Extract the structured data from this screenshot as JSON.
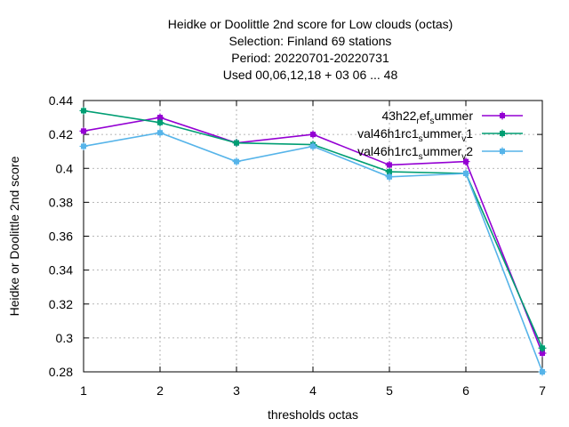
{
  "chart_data": {
    "type": "line",
    "title_lines": [
      "Heidke or Doolittle 2nd score  for Low clouds (octas)",
      "Selection: Finland     69 stations",
      "Period: 20220701-20220731",
      "Used  00,06,12,18  + 03 06 ... 48"
    ],
    "xlabel": "thresholds octas",
    "ylabel": "Heidke or Doolittle 2nd score",
    "x": [
      1,
      2,
      3,
      4,
      5,
      6,
      7
    ],
    "xlim": [
      1,
      7
    ],
    "ylim": [
      0.28,
      0.44
    ],
    "y_ticks": [
      "0.28",
      "0.3",
      "0.32",
      "0.34",
      "0.36",
      "0.38",
      "0.4",
      "0.42",
      "0.44"
    ],
    "x_ticks": [
      "1",
      "2",
      "3",
      "4",
      "5",
      "6",
      "7"
    ],
    "grid": true,
    "legend_position": "top-right",
    "series": [
      {
        "legend_parts": [
          [
            "43h22",
            "n"
          ],
          [
            "r",
            "sub"
          ],
          [
            "ef",
            "n"
          ],
          [
            "s",
            "sub"
          ],
          [
            "ummer",
            "n"
          ]
        ],
        "color": "#9400d3",
        "values": [
          0.422,
          0.43,
          0.415,
          0.42,
          0.402,
          0.404,
          0.291
        ]
      },
      {
        "legend_parts": [
          [
            "val46h1rc1",
            "n"
          ],
          [
            "s",
            "sub"
          ],
          [
            "ummer",
            "n"
          ],
          [
            "v",
            "sub"
          ],
          [
            "1",
            "n"
          ]
        ],
        "color": "#009e73",
        "values": [
          0.434,
          0.427,
          0.415,
          0.414,
          0.398,
          0.397,
          0.294
        ]
      },
      {
        "legend_parts": [
          [
            "val46h1rc1",
            "n"
          ],
          [
            "s",
            "sub"
          ],
          [
            "ummer",
            "n"
          ],
          [
            "v",
            "sub"
          ],
          [
            "2",
            "n"
          ]
        ],
        "color": "#56b4e9",
        "values": [
          0.413,
          0.421,
          0.404,
          0.413,
          0.395,
          0.397,
          0.28
        ]
      }
    ]
  }
}
